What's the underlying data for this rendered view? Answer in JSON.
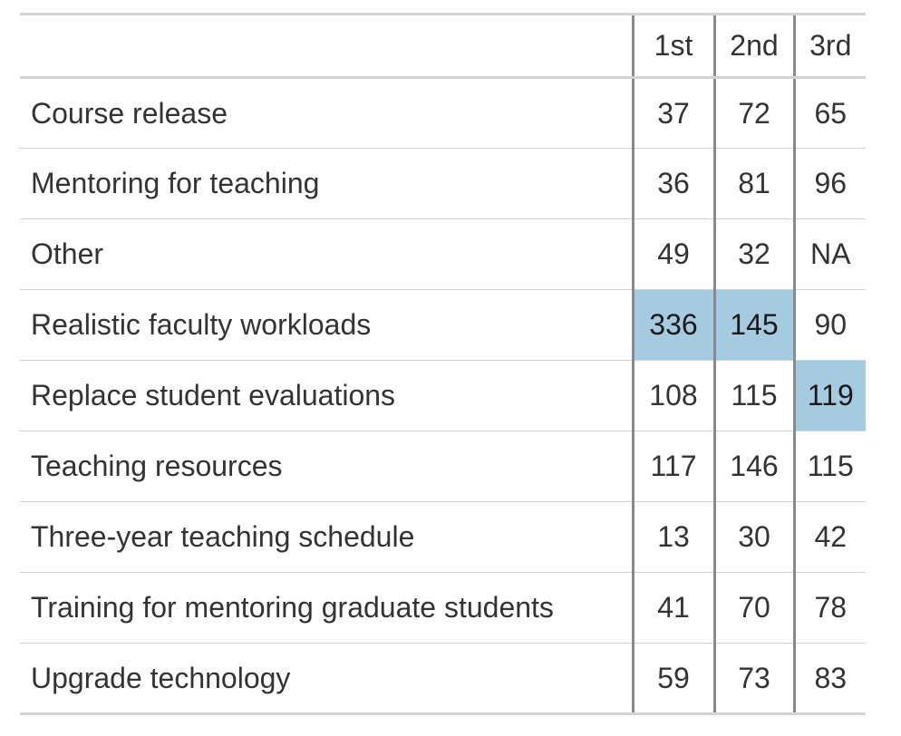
{
  "highlight_color": "#a6cae0",
  "chart_data": {
    "type": "table",
    "columns": [
      "",
      "1st",
      "2nd",
      "3rd"
    ],
    "rows": [
      {
        "label": "Course release",
        "values": [
          "37",
          "72",
          "65"
        ],
        "highlight": [
          false,
          false,
          false
        ]
      },
      {
        "label": "Mentoring for teaching",
        "values": [
          "36",
          "81",
          "96"
        ],
        "highlight": [
          false,
          false,
          false
        ]
      },
      {
        "label": "Other",
        "values": [
          "49",
          "32",
          "NA"
        ],
        "highlight": [
          false,
          false,
          false
        ]
      },
      {
        "label": "Realistic faculty workloads",
        "values": [
          "336",
          "145",
          "90"
        ],
        "highlight": [
          true,
          true,
          false
        ]
      },
      {
        "label": "Replace student evaluations",
        "values": [
          "108",
          "115",
          "119"
        ],
        "highlight": [
          false,
          false,
          true
        ]
      },
      {
        "label": "Teaching resources",
        "values": [
          "117",
          "146",
          "115"
        ],
        "highlight": [
          false,
          false,
          false
        ]
      },
      {
        "label": "Three-year teaching schedule",
        "values": [
          "13",
          "30",
          "42"
        ],
        "highlight": [
          false,
          false,
          false
        ]
      },
      {
        "label": "Training for mentoring graduate students",
        "values": [
          "41",
          "70",
          "78"
        ],
        "highlight": [
          false,
          false,
          false
        ]
      },
      {
        "label": "Upgrade technology",
        "values": [
          "59",
          "73",
          "83"
        ],
        "highlight": [
          false,
          false,
          false
        ]
      }
    ]
  }
}
